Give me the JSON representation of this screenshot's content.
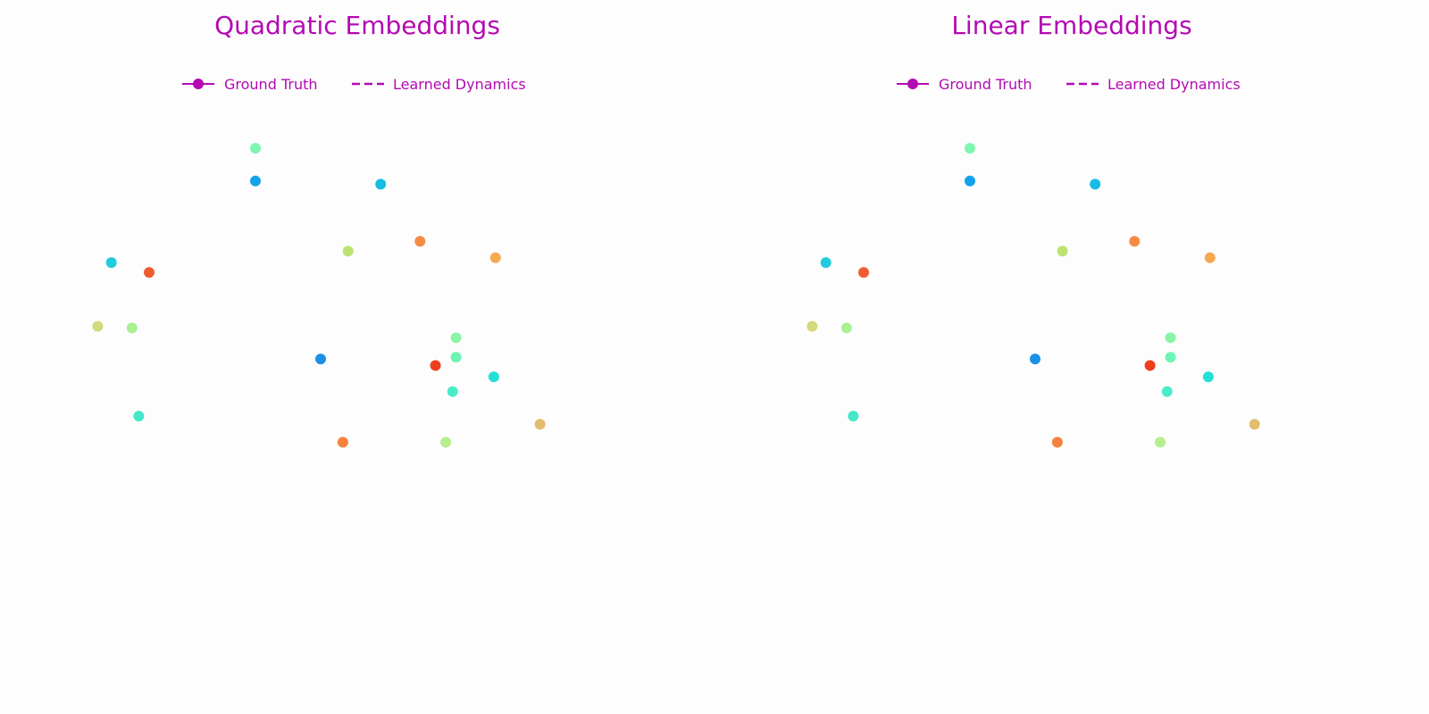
{
  "colors": {
    "accent": "#b30ab3",
    "background": "#fdfdfd"
  },
  "legend": {
    "ground_truth_label": "Ground Truth",
    "learned_label": "Learned Dynamics"
  },
  "chart_data": [
    {
      "type": "scatter",
      "title": "Quadratic Embeddings",
      "xlabel": "",
      "ylabel": "",
      "grid": false,
      "axes_visible": false,
      "legend_position": "top-center",
      "series": [
        {
          "name": "Ground Truth",
          "points": [
            {
              "x": -0.5,
              "y": 1.3,
              "color": "#7ef5b0"
            },
            {
              "x": -0.5,
              "y": 1.1,
              "color": "#14a2ea"
            },
            {
              "x": 0.23,
              "y": 1.08,
              "color": "#14bde3"
            },
            {
              "x": -1.34,
              "y": 0.6,
              "color": "#1fcbdc"
            },
            {
              "x": -1.12,
              "y": 0.54,
              "color": "#f05c30"
            },
            {
              "x": 0.04,
              "y": 0.67,
              "color": "#bce371"
            },
            {
              "x": 0.46,
              "y": 0.73,
              "color": "#f58c44"
            },
            {
              "x": 0.9,
              "y": 0.63,
              "color": "#f7a852"
            },
            {
              "x": -1.42,
              "y": 0.21,
              "color": "#d4d97a"
            },
            {
              "x": -1.22,
              "y": 0.2,
              "color": "#a9f094"
            },
            {
              "x": -0.12,
              "y": 0.01,
              "color": "#1b8fe6"
            },
            {
              "x": 0.67,
              "y": 0.14,
              "color": "#8af5a6"
            },
            {
              "x": 0.67,
              "y": 0.02,
              "color": "#6ef5b4"
            },
            {
              "x": 0.55,
              "y": -0.03,
              "color": "#ef3e1e"
            },
            {
              "x": 0.89,
              "y": -0.1,
              "color": "#24dfd6"
            },
            {
              "x": 0.65,
              "y": -0.19,
              "color": "#4becc8"
            },
            {
              "x": -1.18,
              "y": -0.34,
              "color": "#44e8c8"
            },
            {
              "x": 1.16,
              "y": -0.39,
              "color": "#e2bd6c"
            },
            {
              "x": 0.01,
              "y": -0.5,
              "color": "#f5823c"
            },
            {
              "x": 0.61,
              "y": -0.5,
              "color": "#b7ee90"
            }
          ]
        },
        {
          "name": "Learned Dynamics",
          "points": []
        }
      ]
    },
    {
      "type": "scatter",
      "title": "Linear Embeddings",
      "xlabel": "",
      "ylabel": "",
      "grid": false,
      "axes_visible": false,
      "legend_position": "top-center",
      "series": [
        {
          "name": "Ground Truth",
          "points": [
            {
              "x": -0.5,
              "y": 1.3,
              "color": "#7ef5b0"
            },
            {
              "x": -0.5,
              "y": 1.1,
              "color": "#14a2ea"
            },
            {
              "x": 0.23,
              "y": 1.08,
              "color": "#14bde3"
            },
            {
              "x": -1.34,
              "y": 0.6,
              "color": "#1fcbdc"
            },
            {
              "x": -1.12,
              "y": 0.54,
              "color": "#f05c30"
            },
            {
              "x": 0.04,
              "y": 0.67,
              "color": "#bce371"
            },
            {
              "x": 0.46,
              "y": 0.73,
              "color": "#f58c44"
            },
            {
              "x": 0.9,
              "y": 0.63,
              "color": "#f7a852"
            },
            {
              "x": -1.42,
              "y": 0.21,
              "color": "#d4d97a"
            },
            {
              "x": -1.22,
              "y": 0.2,
              "color": "#a9f094"
            },
            {
              "x": -0.12,
              "y": 0.01,
              "color": "#1b8fe6"
            },
            {
              "x": 0.67,
              "y": 0.14,
              "color": "#8af5a6"
            },
            {
              "x": 0.67,
              "y": 0.02,
              "color": "#6ef5b4"
            },
            {
              "x": 0.55,
              "y": -0.03,
              "color": "#ef3e1e"
            },
            {
              "x": 0.89,
              "y": -0.1,
              "color": "#24dfd6"
            },
            {
              "x": 0.65,
              "y": -0.19,
              "color": "#4becc8"
            },
            {
              "x": -1.18,
              "y": -0.34,
              "color": "#44e8c8"
            },
            {
              "x": 1.16,
              "y": -0.39,
              "color": "#e2bd6c"
            },
            {
              "x": 0.01,
              "y": -0.5,
              "color": "#f5823c"
            },
            {
              "x": 0.61,
              "y": -0.5,
              "color": "#b7ee90"
            }
          ]
        },
        {
          "name": "Learned Dynamics",
          "points": []
        }
      ]
    }
  ]
}
